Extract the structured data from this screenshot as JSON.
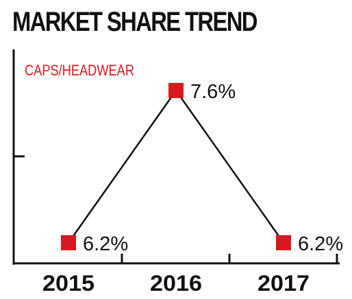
{
  "title": "MARKET SHARE TREND",
  "chart_data": {
    "type": "line",
    "subtitle": "CAPS/HEADWEAR",
    "categories": [
      "2015",
      "2016",
      "2017"
    ],
    "values": [
      6.2,
      7.6,
      6.2
    ],
    "data_labels": [
      "6.2%",
      "7.6%",
      "6.2%"
    ],
    "xlabel": "",
    "ylabel": "",
    "ylim": [
      5.9,
      7.9
    ],
    "grid": false,
    "legend": "none"
  },
  "colors": {
    "marker": "#d71920",
    "line": "#111111",
    "subtitle": "#d71920",
    "text": "#111111",
    "axis": "#111111"
  }
}
